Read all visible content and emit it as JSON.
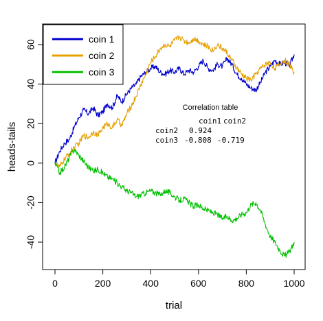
{
  "chart_data": {
    "type": "line",
    "title": "",
    "xlabel": "trial",
    "ylabel": "heads-tails",
    "xlim": [
      0,
      1000
    ],
    "ylim": [
      -50,
      70
    ],
    "x_ticks": [
      0,
      200,
      400,
      600,
      800,
      1000
    ],
    "y_ticks": [
      -40,
      -20,
      0,
      20,
      40,
      60
    ],
    "legend_position": "top-left",
    "grid": false,
    "series": [
      {
        "name": "coin 1",
        "color": "#0000CD",
        "x": [
          0,
          20,
          40,
          60,
          80,
          100,
          120,
          140,
          160,
          180,
          200,
          220,
          240,
          260,
          280,
          300,
          320,
          340,
          360,
          380,
          400,
          420,
          440,
          460,
          480,
          500,
          520,
          540,
          560,
          580,
          600,
          620,
          640,
          660,
          680,
          700,
          720,
          740,
          760,
          780,
          800,
          820,
          840,
          860,
          880,
          900,
          920,
          940,
          960,
          980,
          1000
        ],
        "y": [
          0,
          6,
          10,
          12,
          18,
          23,
          27,
          25,
          28,
          24,
          26,
          30,
          28,
          34,
          31,
          35,
          38,
          40,
          44,
          46,
          48,
          49,
          46,
          45,
          47,
          46,
          48,
          45,
          47,
          46,
          49,
          52,
          48,
          47,
          50,
          49,
          53,
          50,
          45,
          43,
          40,
          38,
          37,
          41,
          46,
          49,
          52,
          50,
          51,
          49,
          55
        ]
      },
      {
        "name": "coin 2",
        "color": "#E69F00",
        "x": [
          0,
          20,
          40,
          60,
          80,
          100,
          120,
          140,
          160,
          180,
          200,
          220,
          240,
          260,
          280,
          300,
          320,
          340,
          360,
          380,
          400,
          420,
          440,
          460,
          480,
          500,
          520,
          540,
          560,
          580,
          600,
          620,
          640,
          660,
          680,
          700,
          720,
          740,
          760,
          780,
          800,
          820,
          840,
          860,
          880,
          900,
          920,
          940,
          960,
          980,
          1000
        ],
        "y": [
          0,
          -2,
          2,
          5,
          8,
          10,
          14,
          13,
          16,
          14,
          18,
          20,
          18,
          22,
          19,
          25,
          29,
          34,
          40,
          45,
          51,
          54,
          58,
          60,
          59,
          62,
          64,
          62,
          61,
          63,
          62,
          60,
          59,
          57,
          60,
          58,
          56,
          52,
          48,
          45,
          43,
          42,
          45,
          48,
          50,
          51,
          48,
          50,
          52,
          50,
          46
        ]
      },
      {
        "name": "coin 3",
        "color": "#00C000",
        "x": [
          0,
          20,
          40,
          60,
          80,
          100,
          120,
          140,
          160,
          180,
          200,
          220,
          240,
          260,
          280,
          300,
          320,
          340,
          360,
          380,
          400,
          420,
          440,
          460,
          480,
          500,
          520,
          540,
          560,
          580,
          600,
          620,
          640,
          660,
          680,
          700,
          720,
          740,
          760,
          780,
          800,
          820,
          840,
          860,
          880,
          900,
          920,
          940,
          960,
          980,
          1000
        ],
        "y": [
          0,
          -5,
          -2,
          3,
          7,
          4,
          1,
          -2,
          -4,
          -3,
          -5,
          -7,
          -8,
          -10,
          -12,
          -14,
          -15,
          -17,
          -16,
          -15,
          -14,
          -15,
          -16,
          -14,
          -15,
          -17,
          -19,
          -18,
          -20,
          -22,
          -21,
          -23,
          -24,
          -25,
          -26,
          -28,
          -27,
          -29,
          -28,
          -26,
          -25,
          -21,
          -20,
          -24,
          -31,
          -37,
          -40,
          -44,
          -47,
          -45,
          -40
        ]
      }
    ],
    "annotation": {
      "title": "Correlation table",
      "col_headers": [
        "coin1",
        "coin2"
      ],
      "rows": [
        {
          "label": "coin2",
          "values": [
            "0.924",
            ""
          ]
        },
        {
          "label": "coin3",
          "values": [
            "-0.808",
            "-0.719"
          ]
        }
      ]
    }
  }
}
